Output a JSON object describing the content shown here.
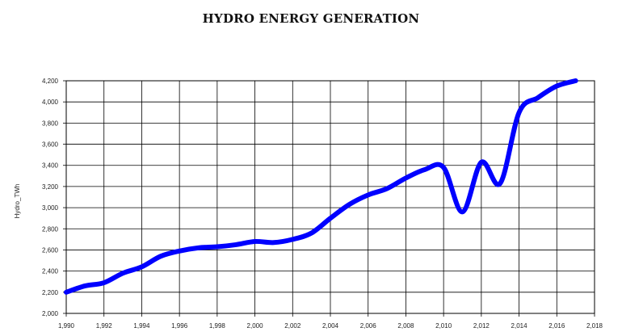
{
  "chart_data": {
    "type": "line",
    "title": "HYDRO ENERGY GENERATION",
    "xlabel": "",
    "ylabel": "Hydro_TWh",
    "xlim": [
      1990,
      2018
    ],
    "ylim": [
      2000,
      4200
    ],
    "x_ticks": [
      "1,990",
      "1,992",
      "1,994",
      "1,996",
      "1,998",
      "2,000",
      "2,002",
      "2,004",
      "2,006",
      "2,008",
      "2,010",
      "2,012",
      "2,014",
      "2,016",
      "2,018"
    ],
    "y_ticks": [
      "2,000",
      "2,200",
      "2,400",
      "2,600",
      "2,800",
      "3,000",
      "3,200",
      "3,400",
      "3,600",
      "3,800",
      "4,000",
      "4,200"
    ],
    "grid": true,
    "series": [
      {
        "color": "#0000ff",
        "x": [
          1990,
          1991,
          1992,
          1993,
          1994,
          1995,
          1996,
          1997,
          1998,
          1999,
          2000,
          2001,
          2002,
          2003,
          2004,
          2005,
          2006,
          2007,
          2008,
          2009,
          2010,
          2011,
          2012,
          2013,
          2014,
          2015,
          2016,
          2017
        ],
        "values": [
          2200,
          2260,
          2290,
          2380,
          2440,
          2540,
          2590,
          2620,
          2630,
          2650,
          2680,
          2670,
          2700,
          2760,
          2900,
          3030,
          3120,
          3180,
          3280,
          3360,
          3380,
          2960,
          3430,
          3230,
          3900,
          4040,
          4150,
          4200
        ]
      }
    ]
  }
}
